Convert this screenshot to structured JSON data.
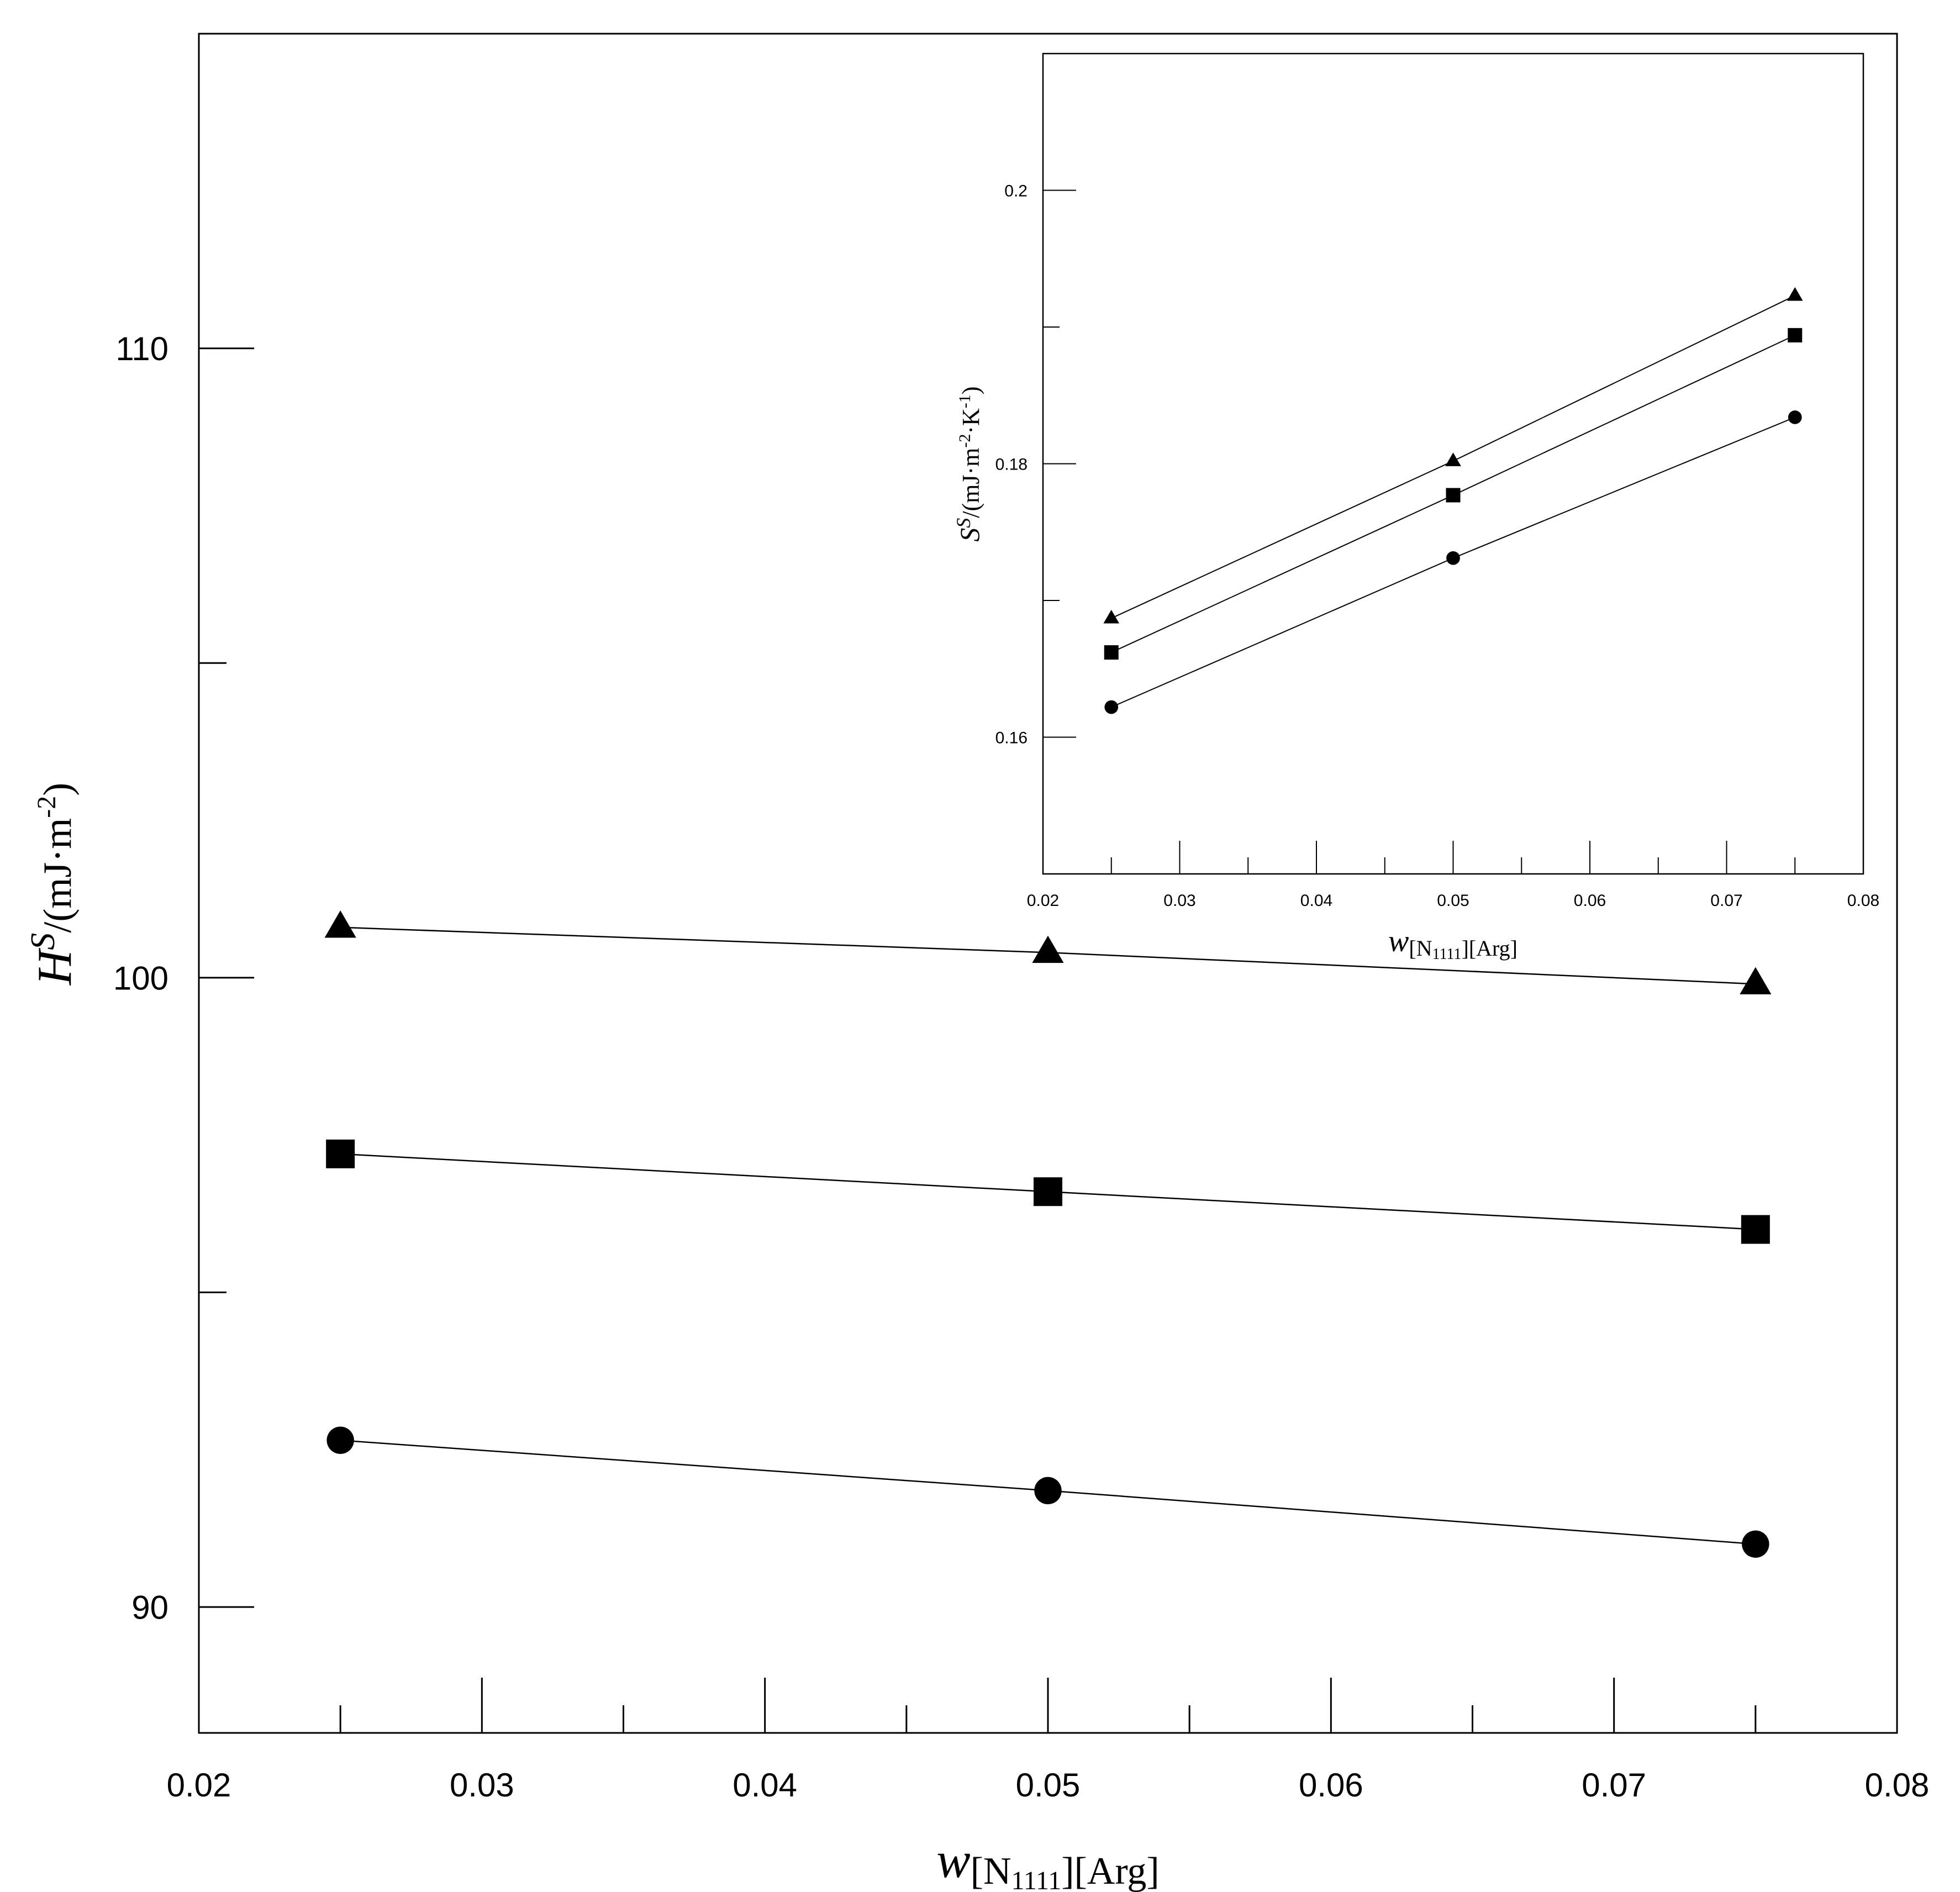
{
  "chart_data": [
    {
      "id": "main",
      "type": "line",
      "x": [
        0.025,
        0.05,
        0.075
      ],
      "xlim": [
        0.02,
        0.08
      ],
      "ylim": [
        88.0,
        115.0
      ],
      "xticks": [
        "0.02",
        "0.03",
        "0.04",
        "0.05",
        "0.06",
        "0.07",
        "0.08"
      ],
      "yticks": [
        "90",
        "100",
        "110"
      ],
      "ylabel": {
        "main": "H",
        "sup": "S",
        "rest": "/(mJ·m",
        "exp": "-2",
        "close": ")"
      },
      "xlabel": {
        "main": "w",
        "sub1": "[N",
        "sub2": "1111",
        "sub3": "][Arg]"
      },
      "grid": false,
      "series": [
        {
          "marker": "triangle",
          "values": [
            100.8,
            100.4,
            99.9
          ]
        },
        {
          "marker": "square",
          "values": [
            97.2,
            96.6,
            96.0
          ]
        },
        {
          "marker": "circle",
          "values": [
            92.65,
            91.85,
            91.0
          ]
        }
      ]
    },
    {
      "id": "inset",
      "type": "line",
      "x": [
        0.025,
        0.05,
        0.075
      ],
      "xlim": [
        0.02,
        0.08
      ],
      "ylim": [
        0.15,
        0.21
      ],
      "xticks": [
        "0.02",
        "0.03",
        "0.04",
        "0.05",
        "0.06",
        "0.07",
        "0.08"
      ],
      "yticks": [
        "0.16",
        "0.18",
        "0.2"
      ],
      "ylabel": {
        "main": "S",
        "sup": "S",
        "rest": "/(mJ·m",
        "exp": "-2",
        "mid": "·K",
        "exp2": "-1",
        "close": ")"
      },
      "xlabel": {
        "main": "w",
        "sub1": "[N",
        "sub2": "1111",
        "sub3": "][Arg]"
      },
      "grid": false,
      "series": [
        {
          "marker": "triangle",
          "values": [
            0.1687,
            0.1802,
            0.1923
          ]
        },
        {
          "marker": "square",
          "values": [
            0.1662,
            0.1777,
            0.1894
          ]
        },
        {
          "marker": "circle",
          "values": [
            0.1622,
            0.1731,
            0.1834
          ]
        }
      ]
    }
  ]
}
